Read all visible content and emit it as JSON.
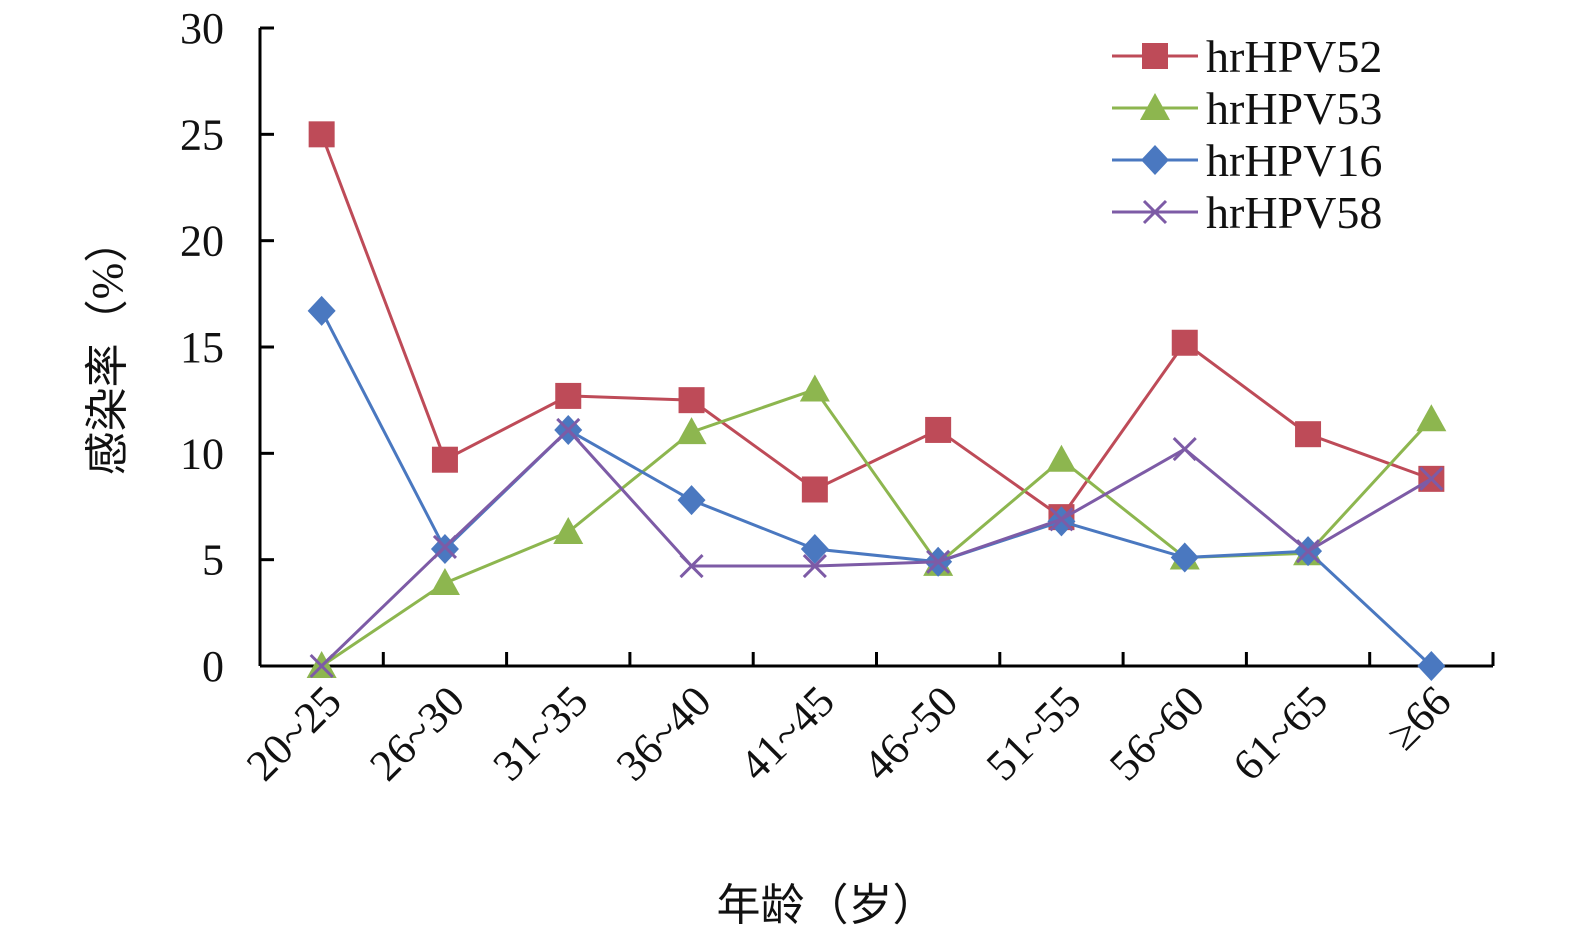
{
  "chart_data": {
    "type": "line",
    "xlabel": "年龄（岁）",
    "ylabel": "感染率（%）",
    "ylim": [
      0,
      30
    ],
    "yticks": [
      0,
      5,
      10,
      15,
      20,
      25,
      30
    ],
    "grid": false,
    "legend_position": "top-right",
    "categories": [
      "20~25",
      "26~30",
      "31~35",
      "36~40",
      "41~45",
      "46~50",
      "51~55",
      "56~60",
      "61~65",
      "≥66"
    ],
    "series": [
      {
        "name": "hrHPV52",
        "color": "#be4b58",
        "marker": "square",
        "values": [
          25.0,
          9.7,
          12.7,
          12.5,
          8.3,
          11.1,
          7.0,
          15.2,
          10.9,
          8.8
        ]
      },
      {
        "name": "hrHPV53",
        "color": "#8db64f",
        "marker": "triangle",
        "values": [
          0.0,
          3.9,
          6.3,
          11.0,
          13.0,
          4.8,
          9.7,
          5.1,
          5.3,
          11.6
        ]
      },
      {
        "name": "hrHPV16",
        "color": "#4a78c0",
        "marker": "diamond",
        "values": [
          16.7,
          5.5,
          11.1,
          7.8,
          5.5,
          4.9,
          6.8,
          5.1,
          5.4,
          0.0
        ]
      },
      {
        "name": "hrHPV58",
        "color": "#7d5ba6",
        "marker": "x",
        "values": [
          0.0,
          5.6,
          11.1,
          4.7,
          4.7,
          4.9,
          6.9,
          10.2,
          5.4,
          8.8
        ]
      }
    ]
  }
}
